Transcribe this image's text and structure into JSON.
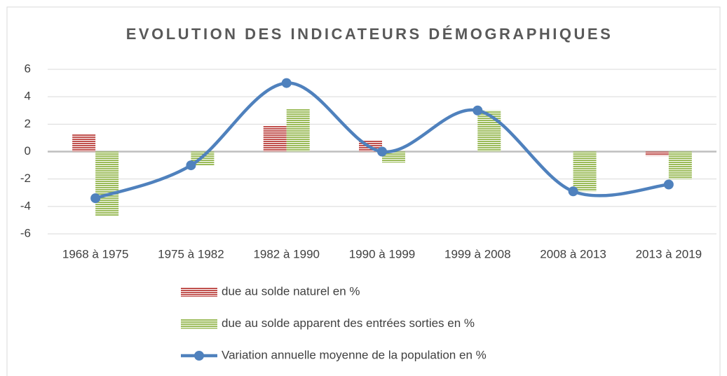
{
  "chart_data": {
    "type": "combo",
    "title": "EVOLUTION DES INDICATEURS DÉMOGRAPHIQUES",
    "categories": [
      "1968 à 1975",
      "1975 à 1982",
      "1982 à 1990",
      "1990 à 1999",
      "1999 à 2008",
      "2008 à 2013",
      "2013 à 2019"
    ],
    "series": [
      {
        "name": "due au solde naturel en %",
        "type": "bar",
        "color": "#c0504d",
        "values": [
          1.3,
          0,
          1.9,
          0.8,
          0,
          0,
          -0.3
        ]
      },
      {
        "name": "due au solde apparent des entrées sorties en %",
        "type": "bar",
        "color": "#9bbb59",
        "values": [
          -4.7,
          -1.0,
          3.1,
          -0.8,
          3.0,
          -2.9,
          -2.0
        ]
      },
      {
        "name": "Variation annuelle moyenne de la population en %",
        "type": "line",
        "color": "#4f81bd",
        "values": [
          -3.4,
          -1.0,
          5.0,
          0.0,
          3.0,
          -2.9,
          -2.4
        ]
      }
    ],
    "ylim": [
      -6,
      6
    ],
    "yticks": [
      -6,
      -4,
      -2,
      0,
      2,
      4,
      6
    ],
    "grid": true,
    "legend": "bottom"
  }
}
